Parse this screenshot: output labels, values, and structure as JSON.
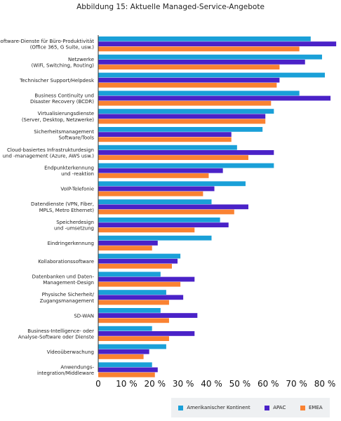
{
  "title": "Abbildung 15: Aktuelle Managed-Service-Angebote",
  "colors": {
    "amerika": "#1aa0d8",
    "apac": "#4a22c8",
    "emea": "#fa8232",
    "axis": "#333333"
  },
  "chart_data": {
    "type": "bar",
    "orientation": "horizontal",
    "title": "Abbildung 15: Aktuelle Managed-Service-Angebote",
    "xlabel": "",
    "ylabel": "",
    "xlim": [
      0,
      80
    ],
    "x_ticks": [
      "0",
      "10 %",
      "20 %",
      "30 %",
      "40 %",
      "50 %",
      "60 %",
      "70 %",
      "80 %"
    ],
    "grid": false,
    "legend_position": "bottom-right",
    "categories": [
      [
        "Software-Dienste für Büro-Produktivität",
        "(Office 365, G Suite, usw.)"
      ],
      [
        "Netzwerke",
        "(WiFi, Switching, Routing)"
      ],
      [
        "Technischer Support/Helpdesk"
      ],
      [
        "Business Continuity und",
        "Disaster Recovery (BCDR)"
      ],
      [
        "Virtualisierungsdienste",
        "(Server, Desktop, Netzwerke)"
      ],
      [
        "Sicherheitsmanagement",
        "Software/Tools"
      ],
      [
        "Cloud-basiertes Infrastrukturdesign",
        "und -management (Azure, AWS usw.)"
      ],
      [
        "Endpunkterkennung",
        "und -reaktion"
      ],
      [
        "VoIP-Telefonie"
      ],
      [
        "Datendienste (VPN, Fiber,",
        "MPLS, Metro Ethernet)"
      ],
      [
        "Speicherdesign",
        "und -umsetzung"
      ],
      [
        "Eindringerkennung"
      ],
      [
        "Kollaborationssoftware"
      ],
      [
        "Datenbanken und Daten-",
        "Management-Design"
      ],
      [
        "Physische Sicherheit/",
        "Zugangsmanagement"
      ],
      [
        "SD-WAN"
      ],
      [
        "Business-Intelligence- oder",
        "Analyse-Software oder Dienste"
      ],
      [
        "Videoüberwachung"
      ],
      [
        "Anwendungs-",
        "integration/Middleware"
      ]
    ],
    "series": [
      {
        "name": "Amerikanischer Kontinent",
        "color": "#1aa0d8",
        "values": [
          75,
          79,
          80,
          71,
          62,
          58,
          49,
          62,
          52,
          40,
          43,
          40,
          29,
          22,
          24,
          22,
          19,
          24,
          19
        ]
      },
      {
        "name": "APAC",
        "color": "#4a22c8",
        "values": [
          84,
          73,
          64,
          82,
          59,
          47,
          62,
          44,
          41,
          53,
          46,
          21,
          28,
          34,
          30,
          35,
          34,
          18,
          21
        ]
      },
      {
        "name": "EMEA",
        "color": "#fa8232",
        "values": [
          71,
          64,
          63,
          61,
          59,
          47,
          53,
          39,
          37,
          48,
          34,
          19,
          26,
          29,
          25,
          25,
          25,
          16,
          20
        ]
      }
    ]
  }
}
